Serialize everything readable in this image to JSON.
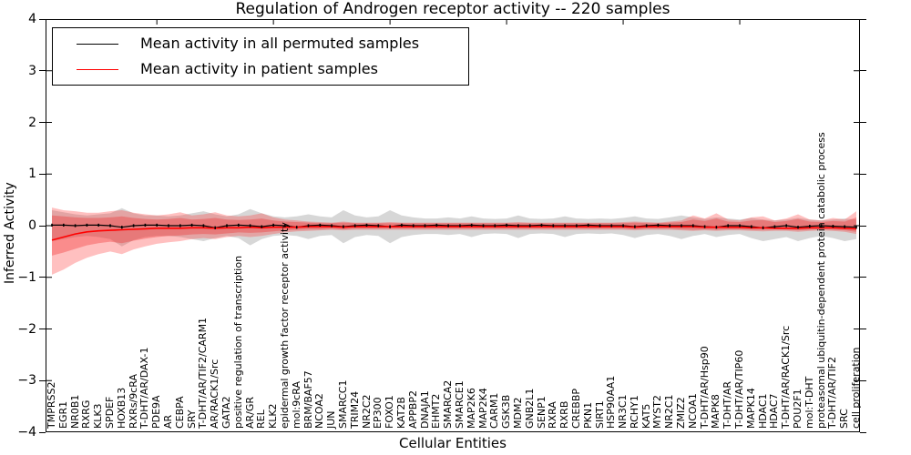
{
  "title": "Regulation of Androgen receptor activity -- 220 samples",
  "axes": {
    "x_label": "Cellular Entities",
    "y_label": "Inferred Activity"
  },
  "legend": {
    "items": [
      {
        "label": "Mean activity in all permuted samples",
        "color": "#000000"
      },
      {
        "label": "Mean activity in patient samples",
        "color": "#ff0000"
      }
    ]
  },
  "chart_data": {
    "type": "line",
    "title": "Regulation of Androgen receptor activity -- 220 samples",
    "xlabel": "Cellular Entities",
    "ylabel": "Inferred Activity",
    "ylim": [
      -4,
      4
    ],
    "yticks": [
      4,
      3,
      2,
      1,
      0,
      -1,
      -2,
      -3,
      -4
    ],
    "grid": false,
    "legend_position": "upper left",
    "categories": [
      "TMPRSS2",
      "EGR1",
      "NR0B1",
      "RXRG",
      "KLK3",
      "SPDEF",
      "HOXB13",
      "RXRs/9cRA",
      "T-DHT/AR/DAX-1",
      "PDE9A",
      "AR",
      "CEBPA",
      "SRY",
      "T-DHT/AR/TIF2/CARM1",
      "AR/RACK1/Src",
      "GATA2",
      "positive regulation of transcription",
      "AR/GR",
      "REL",
      "KLK2",
      "epidermal growth factor receptor activity",
      "mol:9cRA",
      "BRM/BAF57",
      "NCOA2",
      "JUN",
      "SMARCC1",
      "TRIM24",
      "NR2C2",
      "EP300",
      "FOXO1",
      "KAT2B",
      "APPBP2",
      "DNAJA1",
      "EHMT2",
      "SMARCA2",
      "SMARCE1",
      "MAP2K6",
      "MAP2K4",
      "CARM1",
      "GSK3B",
      "MDM2",
      "GNB2L1",
      "SENP1",
      "RXRA",
      "RXRB",
      "CREBBP",
      "PKN1",
      "SIRT1",
      "HSP90AA1",
      "NR3C1",
      "RCHY1",
      "KAT5",
      "MYST2",
      "NR2C1",
      "ZMIZ2",
      "NCOA1",
      "T-DHT/AR/Hsp90",
      "MAPK8",
      "T-DHT/AR",
      "T-DHT/AR/TIP60",
      "MAPK14",
      "HDAC1",
      "HDAC7",
      "T-DHT/AR/RACK1/Src",
      "POU2F1",
      "mol:T-DHT",
      "proteasomal ubiquitin-dependent protein catabolic process",
      "T-DHT/AR/TIF2",
      "SRC",
      "cell proliferation"
    ],
    "series": [
      {
        "name": "Mean activity in all permuted samples",
        "color": "#000000",
        "values": [
          0.01,
          0.01,
          0.0,
          0.01,
          0.01,
          0.0,
          -0.03,
          0.0,
          0.01,
          0.01,
          0.0,
          0.0,
          0.01,
          0.0,
          -0.04,
          0.0,
          0.01,
          0.0,
          -0.02,
          0.01,
          0.0,
          -0.03,
          0.0,
          0.01,
          0.0,
          -0.02,
          0.0,
          0.01,
          0.0,
          -0.02,
          0.01,
          0.0,
          0.0,
          0.01,
          0.0,
          0.0,
          0.01,
          0.0,
          0.0,
          0.01,
          0.0,
          0.0,
          0.01,
          0.0,
          0.0,
          0.0,
          0.01,
          0.0,
          0.0,
          0.0,
          -0.02,
          0.0,
          0.01,
          0.0,
          0.0,
          0.0,
          -0.02,
          -0.03,
          0.0,
          0.0,
          -0.02,
          -0.04,
          -0.02,
          0.0,
          -0.03,
          -0.01,
          0.0,
          -0.01,
          -0.02,
          -0.03
        ]
      },
      {
        "name": "Mean activity in patient samples",
        "color": "#ff0000",
        "values": [
          -0.28,
          -0.22,
          -0.16,
          -0.12,
          -0.1,
          -0.09,
          -0.08,
          -0.07,
          -0.06,
          -0.05,
          -0.05,
          -0.05,
          -0.04,
          -0.04,
          -0.05,
          -0.04,
          -0.04,
          -0.03,
          -0.04,
          -0.03,
          -0.03,
          -0.03,
          -0.02,
          -0.02,
          -0.02,
          -0.03,
          -0.02,
          -0.02,
          -0.02,
          -0.02,
          -0.02,
          -0.02,
          -0.02,
          -0.02,
          -0.02,
          -0.02,
          -0.02,
          -0.02,
          -0.02,
          -0.02,
          -0.02,
          -0.02,
          -0.02,
          -0.02,
          -0.02,
          -0.02,
          -0.02,
          -0.02,
          -0.02,
          -0.02,
          -0.03,
          -0.02,
          -0.02,
          -0.02,
          -0.02,
          -0.02,
          -0.03,
          -0.03,
          -0.03,
          -0.03,
          -0.04,
          -0.04,
          -0.05,
          -0.05,
          -0.05,
          -0.04,
          -0.04,
          -0.04,
          -0.05,
          -0.06
        ]
      }
    ],
    "bands": [
      {
        "name": "permuted-range",
        "color": "rgba(150,150,150,0.38)",
        "upper": [
          0.3,
          0.26,
          0.22,
          0.2,
          0.22,
          0.24,
          0.34,
          0.24,
          0.2,
          0.2,
          0.18,
          0.2,
          0.24,
          0.28,
          0.22,
          0.18,
          0.22,
          0.32,
          0.24,
          0.18,
          0.16,
          0.18,
          0.22,
          0.18,
          0.16,
          0.3,
          0.2,
          0.16,
          0.18,
          0.3,
          0.2,
          0.16,
          0.14,
          0.14,
          0.16,
          0.14,
          0.18,
          0.14,
          0.13,
          0.14,
          0.2,
          0.14,
          0.13,
          0.14,
          0.18,
          0.14,
          0.13,
          0.14,
          0.13,
          0.15,
          0.18,
          0.14,
          0.13,
          0.16,
          0.2,
          0.16,
          0.13,
          0.16,
          0.14,
          0.12,
          0.15,
          0.12,
          0.1,
          0.12,
          0.15,
          0.12,
          0.1,
          0.12,
          0.14,
          0.12
        ],
        "lower": [
          -0.3,
          -0.26,
          -0.22,
          -0.2,
          -0.22,
          -0.26,
          -0.4,
          -0.28,
          -0.22,
          -0.2,
          -0.2,
          -0.22,
          -0.26,
          -0.3,
          -0.24,
          -0.2,
          -0.24,
          -0.38,
          -0.26,
          -0.2,
          -0.18,
          -0.2,
          -0.26,
          -0.2,
          -0.18,
          -0.34,
          -0.22,
          -0.18,
          -0.2,
          -0.34,
          -0.22,
          -0.18,
          -0.16,
          -0.16,
          -0.18,
          -0.16,
          -0.22,
          -0.16,
          -0.15,
          -0.16,
          -0.24,
          -0.16,
          -0.15,
          -0.16,
          -0.22,
          -0.16,
          -0.15,
          -0.16,
          -0.15,
          -0.18,
          -0.24,
          -0.18,
          -0.16,
          -0.2,
          -0.26,
          -0.2,
          -0.16,
          -0.22,
          -0.18,
          -0.16,
          -0.24,
          -0.3,
          -0.26,
          -0.22,
          -0.3,
          -0.24,
          -0.2,
          -0.24,
          -0.3,
          -0.26
        ]
      },
      {
        "name": "patient-range-outer",
        "color": "rgba(255,45,45,0.30)",
        "upper": [
          0.35,
          0.3,
          0.28,
          0.25,
          0.25,
          0.28,
          0.3,
          0.25,
          0.22,
          0.2,
          0.22,
          0.26,
          0.2,
          0.22,
          0.26,
          0.2,
          0.18,
          0.2,
          0.24,
          0.16,
          0.12,
          0.1,
          0.08,
          0.07,
          0.06,
          0.08,
          0.06,
          0.06,
          0.06,
          0.07,
          0.06,
          0.06,
          0.06,
          0.06,
          0.06,
          0.06,
          0.06,
          0.06,
          0.06,
          0.06,
          0.07,
          0.06,
          0.06,
          0.06,
          0.06,
          0.06,
          0.06,
          0.06,
          0.06,
          0.07,
          0.08,
          0.07,
          0.06,
          0.08,
          0.1,
          0.2,
          0.14,
          0.24,
          0.12,
          0.1,
          0.16,
          0.18,
          0.1,
          0.14,
          0.22,
          0.12,
          0.1,
          0.15,
          0.12,
          0.28
        ],
        "lower": [
          -0.95,
          -0.85,
          -0.72,
          -0.62,
          -0.55,
          -0.5,
          -0.55,
          -0.46,
          -0.4,
          -0.35,
          -0.32,
          -0.3,
          -0.26,
          -0.24,
          -0.26,
          -0.22,
          -0.2,
          -0.22,
          -0.2,
          -0.16,
          -0.13,
          -0.11,
          -0.1,
          -0.09,
          -0.08,
          -0.09,
          -0.08,
          -0.08,
          -0.08,
          -0.08,
          -0.08,
          -0.08,
          -0.08,
          -0.08,
          -0.08,
          -0.08,
          -0.08,
          -0.08,
          -0.08,
          -0.08,
          -0.08,
          -0.08,
          -0.08,
          -0.08,
          -0.08,
          -0.08,
          -0.08,
          -0.08,
          -0.08,
          -0.08,
          -0.09,
          -0.08,
          -0.08,
          -0.08,
          -0.09,
          -0.1,
          -0.09,
          -0.1,
          -0.09,
          -0.09,
          -0.1,
          -0.11,
          -0.1,
          -0.1,
          -0.12,
          -0.1,
          -0.09,
          -0.1,
          -0.12,
          -0.16
        ]
      },
      {
        "name": "patient-range-inner",
        "color": "rgba(240,30,30,0.32)",
        "upper": [
          0.2,
          0.18,
          0.16,
          0.15,
          0.15,
          0.16,
          0.18,
          0.15,
          0.13,
          0.12,
          0.13,
          0.15,
          0.12,
          0.13,
          0.15,
          0.12,
          0.11,
          0.12,
          0.14,
          0.1,
          0.08,
          0.07,
          0.06,
          0.05,
          0.05,
          0.06,
          0.05,
          0.05,
          0.05,
          0.05,
          0.05,
          0.05,
          0.05,
          0.05,
          0.05,
          0.05,
          0.05,
          0.05,
          0.05,
          0.05,
          0.05,
          0.05,
          0.05,
          0.05,
          0.05,
          0.05,
          0.05,
          0.05,
          0.05,
          0.05,
          0.06,
          0.05,
          0.05,
          0.06,
          0.07,
          0.12,
          0.09,
          0.14,
          0.08,
          0.07,
          0.1,
          0.11,
          0.07,
          0.09,
          0.13,
          0.08,
          0.07,
          0.09,
          0.08,
          0.16
        ],
        "lower": [
          -0.58,
          -0.52,
          -0.45,
          -0.38,
          -0.34,
          -0.31,
          -0.34,
          -0.29,
          -0.25,
          -0.22,
          -0.2,
          -0.19,
          -0.17,
          -0.16,
          -0.17,
          -0.15,
          -0.13,
          -0.14,
          -0.13,
          -0.11,
          -0.09,
          -0.08,
          -0.07,
          -0.07,
          -0.06,
          -0.07,
          -0.06,
          -0.06,
          -0.06,
          -0.06,
          -0.06,
          -0.06,
          -0.06,
          -0.06,
          -0.06,
          -0.06,
          -0.06,
          -0.06,
          -0.06,
          -0.06,
          -0.06,
          -0.06,
          -0.06,
          -0.06,
          -0.06,
          -0.06,
          -0.06,
          -0.06,
          -0.06,
          -0.06,
          -0.07,
          -0.06,
          -0.06,
          -0.06,
          -0.07,
          -0.08,
          -0.07,
          -0.08,
          -0.07,
          -0.07,
          -0.08,
          -0.08,
          -0.07,
          -0.08,
          -0.09,
          -0.08,
          -0.07,
          -0.08,
          -0.09,
          -0.12
        ]
      }
    ]
  }
}
